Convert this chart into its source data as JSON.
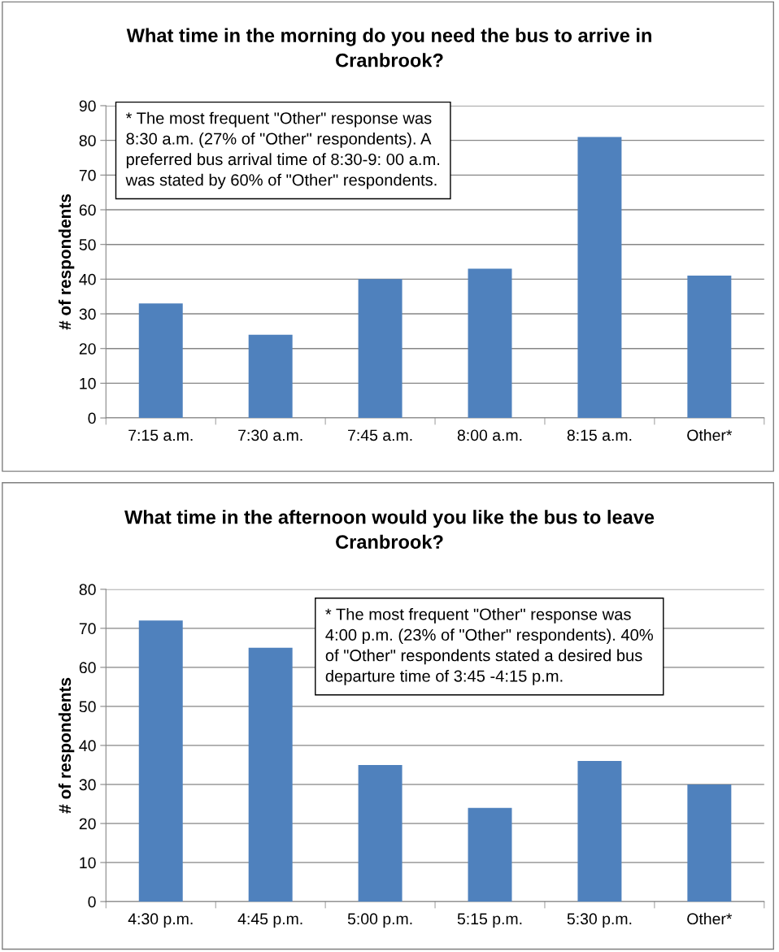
{
  "chart_data": [
    {
      "type": "bar",
      "title": "What time in the morning do you need the bus to arrive in\nCranbrook?",
      "ylabel": "# of respondents",
      "categories": [
        "7:15 a.m.",
        "7:30 a.m.",
        "7:45 a.m.",
        "8:00 a.m.",
        "8:15 a.m.",
        "Other*"
      ],
      "values": [
        33,
        24,
        40,
        43,
        81,
        41
      ],
      "color": "#4f81bd",
      "ylim": [
        0,
        90
      ],
      "yticks": [
        0,
        10,
        20,
        30,
        40,
        50,
        60,
        70,
        80,
        90
      ],
      "grid": "y",
      "legend": false,
      "annotations": [
        "* The most frequent \"Other\" response was\n8:30 a.m. (27% of \"Other\" respondents). A\npreferred bus arrival time of 8:30-9: 00 a.m.\nwas stated by 60% of \"Other\" respondents."
      ]
    },
    {
      "type": "bar",
      "title": "What time in the afternoon would you like the bus to leave\nCranbrook?",
      "ylabel": "# of respondents",
      "categories": [
        "4:30 p.m.",
        "4:45 p.m.",
        "5:00 p.m.",
        "5:15 p.m.",
        "5:30 p.m.",
        "Other*"
      ],
      "values": [
        72,
        65,
        35,
        24,
        36,
        30
      ],
      "color": "#4f81bd",
      "ylim": [
        0,
        80
      ],
      "yticks": [
        0,
        10,
        20,
        30,
        40,
        50,
        60,
        70,
        80
      ],
      "grid": "y",
      "legend": false,
      "annotations": [
        "* The most frequent \"Other\" response was\n4:00 p.m. (23% of \"Other\" respondents). 40%\nof \"Other\" respondents stated a desired bus\ndeparture time of 3:45 -4:15 p.m."
      ]
    }
  ]
}
